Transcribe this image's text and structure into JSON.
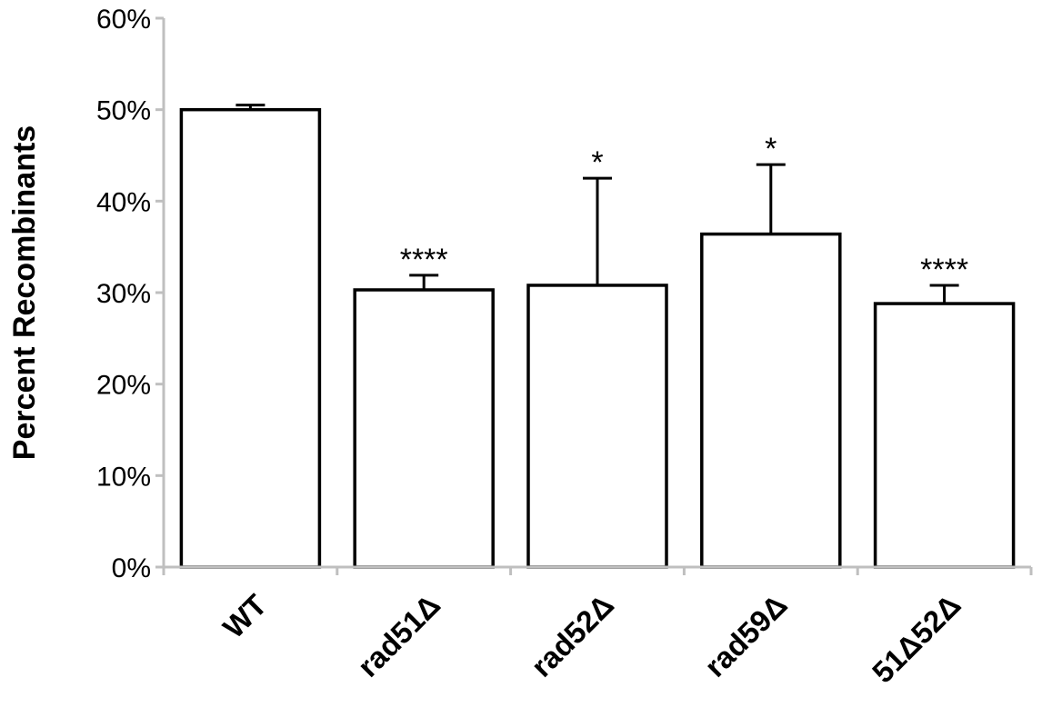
{
  "chart_data": {
    "type": "bar",
    "ylabel": "Percent Recombinants",
    "xlabel": "",
    "ylim": [
      0,
      60
    ],
    "yticks": [
      0,
      10,
      20,
      30,
      40,
      50,
      60
    ],
    "ytick_labels": [
      "0%",
      "10%",
      "20%",
      "30%",
      "40%",
      "50%",
      "60%"
    ],
    "categories": [
      "WT",
      "rad51Δ",
      "rad52Δ",
      "rad59Δ",
      "51Δ52Δ"
    ],
    "values": [
      50,
      30.3,
      30.8,
      36.4,
      28.8
    ],
    "errors": [
      0.5,
      1.6,
      11.7,
      7.6,
      2.0
    ],
    "significance": [
      "",
      "****",
      "*",
      "*",
      "****"
    ],
    "grid": false,
    "bar_fill": "#ffffff",
    "bar_edge": "#000000",
    "axis_color": "#bfbfbf"
  }
}
